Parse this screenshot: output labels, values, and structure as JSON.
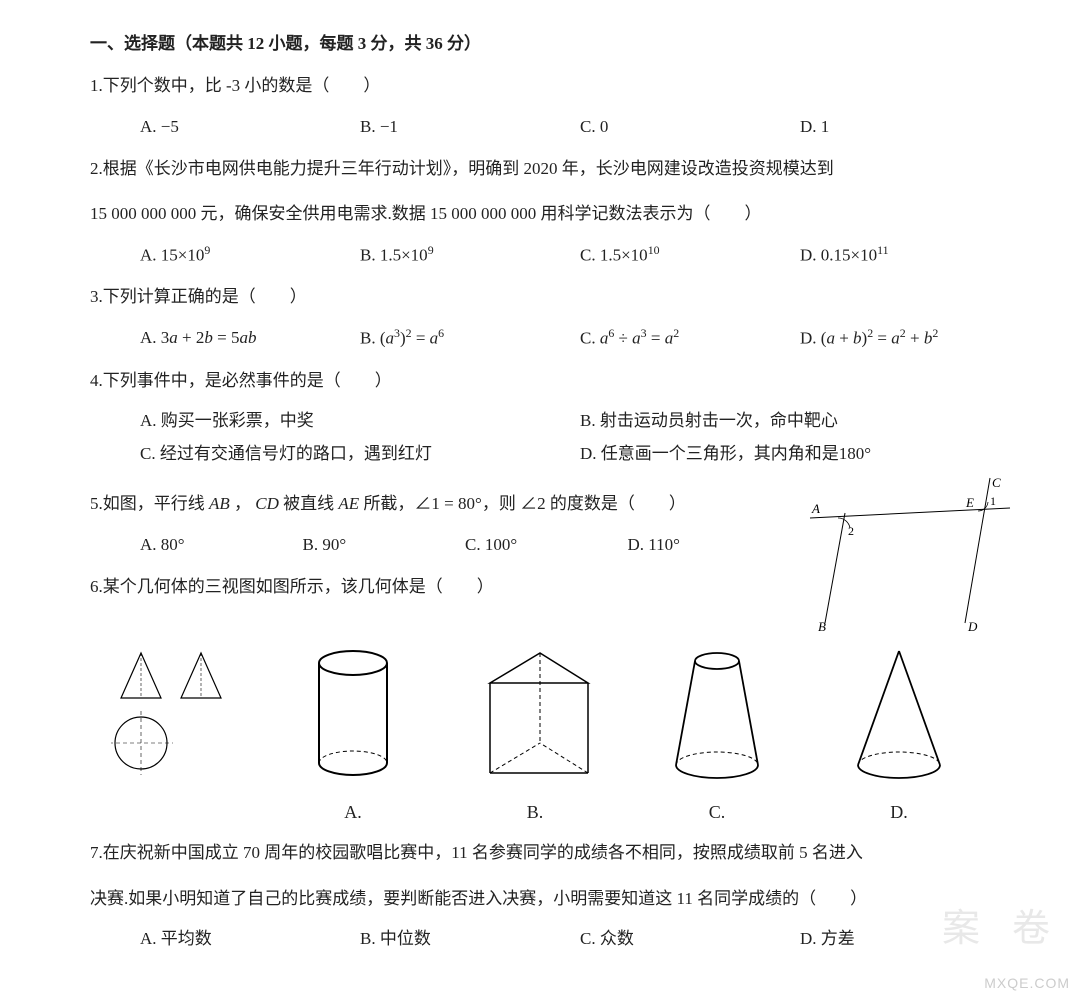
{
  "section_title": "一、选择题（本题共 12 小题，每题 3 分，共 36 分）",
  "q1": {
    "stem": "1.下列个数中，比 -3 小的数是（　　）",
    "A": "A.  −5",
    "B": "B.  −1",
    "C": "C.  0",
    "D": "D.  1"
  },
  "q2": {
    "line1": "2.根据《长沙市电网供电能力提升三年行动计划》，明确到 2020 年，长沙电网建设改造投资规模达到",
    "line2": "15 000 000 000 元，确保安全供用电需求.数据 15 000 000 000 用科学记数法表示为（　　）",
    "A_pre": "A.  15×10",
    "A_sup": "9",
    "B_pre": "B.  1.5×10",
    "B_sup": "9",
    "C_pre": "C.  1.5×10",
    "C_sup": "10",
    "D_pre": "D.  0.15×10",
    "D_sup": "11"
  },
  "q3": {
    "stem": "3.下列计算正确的是（　　）",
    "A": "A.  3<i>a</i> + 2<i>b</i> = 5<i>ab</i>",
    "B": "B.  (<i>a</i><sup>3</sup>)<sup>2</sup> = <i>a</i><sup>6</sup>",
    "C": "C.  <i>a</i><sup>6</sup> ÷ <i>a</i><sup>3</sup> = <i>a</i><sup>2</sup>",
    "D": "D.  (<i>a</i> + <i>b</i>)<sup>2</sup> = <i>a</i><sup>2</sup> + <i>b</i><sup>2</sup>"
  },
  "q4": {
    "stem": "4.下列事件中，是必然事件的是（　　）",
    "A": "A.  购买一张彩票，中奖",
    "B": "B.  射击运动员射击一次，命中靶心",
    "C": "C.  经过有交通信号灯的路口，遇到红灯",
    "D": "D.  任意画一个三角形，其内角和是180°"
  },
  "q5": {
    "stem": "5.如图，平行线 <span class='it'>AB</span> ， <span class='it'>CD</span> 被直线 <span class='it'>AE</span> 所截，∠1 = 80°，则 ∠2 的度数是（　　）",
    "A": "A.  80°",
    "B": "B. 90°",
    "C": "C. 100°",
    "D": "D. 110°",
    "labels": {
      "A": "A",
      "B": "B",
      "C": "C",
      "D": "D",
      "E": "E",
      "a1": "1",
      "a2": "2"
    }
  },
  "q6": {
    "stem": "6.某个几何体的三视图如图所示，该几何体是（　　）",
    "A": "A.",
    "B": "B.",
    "C": "C.",
    "D": "D."
  },
  "q7": {
    "line1": "7.在庆祝新中国成立 70 周年的校园歌唱比赛中，11 名参赛同学的成绩各不相同，按照成绩取前 5 名进入",
    "line2": "决赛.如果小明知道了自己的比赛成绩，要判断能否进入决赛，小明需要知道这 11 名同学成绩的（　　）",
    "A": "A.  平均数",
    "B": "B.  中位数",
    "C": "C.  众数",
    "D": "D.  方差"
  },
  "wm": "MXQE.COM",
  "stamp1": "卷",
  "stamp2": "案"
}
